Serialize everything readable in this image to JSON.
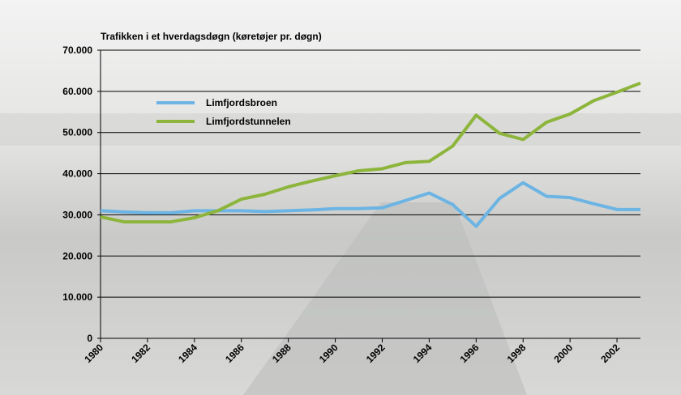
{
  "chart_data": {
    "type": "line",
    "title": "Trafikken i et hverdagsdøgn (køretøjer pr. døgn)",
    "x": [
      1980,
      1981,
      1982,
      1983,
      1984,
      1985,
      1986,
      1987,
      1988,
      1989,
      1990,
      1991,
      1992,
      1993,
      1994,
      1995,
      1996,
      1997,
      1998,
      1999,
      2000,
      2001,
      2002,
      2003
    ],
    "series": [
      {
        "name": "Limfjordsbroen",
        "color": "#6cb4e4",
        "values": [
          31000,
          30700,
          30500,
          30500,
          31000,
          31000,
          31000,
          30800,
          31000,
          31200,
          31500,
          31500,
          31700,
          33500,
          35300,
          32500,
          27200,
          34000,
          37800,
          34500,
          34200,
          32700,
          31300,
          31300
        ]
      },
      {
        "name": "Limfjordstunnelen",
        "color": "#8db53c",
        "values": [
          29500,
          28300,
          28300,
          28300,
          29300,
          31000,
          33800,
          35000,
          36800,
          38200,
          39500,
          40700,
          41200,
          42700,
          43000,
          46700,
          54200,
          49800,
          48300,
          52500,
          54500,
          57700,
          59800,
          62000
        ]
      }
    ],
    "xlim": [
      1980,
      2003
    ],
    "xticks": [
      1980,
      1982,
      1984,
      1986,
      1988,
      1990,
      1992,
      1994,
      1996,
      1998,
      2000,
      2002
    ],
    "ylim": [
      0,
      70000
    ],
    "yticks": [
      {
        "value": 0,
        "label": "0"
      },
      {
        "value": 10000,
        "label": "10.000"
      },
      {
        "value": 20000,
        "label": "20.000"
      },
      {
        "value": 30000,
        "label": "30.000"
      },
      {
        "value": 40000,
        "label": "40.000"
      },
      {
        "value": 50000,
        "label": "50.000"
      },
      {
        "value": 60000,
        "label": "60.000"
      },
      {
        "value": 70000,
        "label": "70.000"
      }
    ],
    "grid": true,
    "legend": "upper left"
  }
}
